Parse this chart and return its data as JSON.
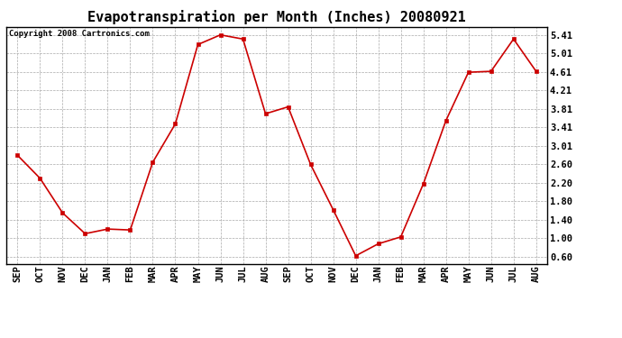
{
  "title": "Evapotranspiration per Month (Inches) 20080921",
  "copyright": "Copyright 2008 Cartronics.com",
  "months": [
    "SEP",
    "OCT",
    "NOV",
    "DEC",
    "JAN",
    "FEB",
    "MAR",
    "APR",
    "MAY",
    "JUN",
    "JUL",
    "AUG",
    "SEP",
    "OCT",
    "NOV",
    "DEC",
    "JAN",
    "FEB",
    "MAR",
    "APR",
    "MAY",
    "JUN",
    "JUL",
    "AUG"
  ],
  "values": [
    2.8,
    2.3,
    1.55,
    1.1,
    1.2,
    1.18,
    2.65,
    3.48,
    5.2,
    5.41,
    5.32,
    3.7,
    3.85,
    2.6,
    1.62,
    0.62,
    0.88,
    1.03,
    2.18,
    3.55,
    4.6,
    4.62,
    5.32,
    4.62
  ],
  "line_color": "#cc0000",
  "marker": "s",
  "marker_size": 2.5,
  "background_color": "#ffffff",
  "grid_color": "#aaaaaa",
  "yticks": [
    0.6,
    1.0,
    1.4,
    1.8,
    2.2,
    2.6,
    3.01,
    3.41,
    3.81,
    4.21,
    4.61,
    5.01,
    5.41
  ],
  "ylim": [
    0.45,
    5.58
  ],
  "title_fontsize": 11,
  "copyright_fontsize": 6.5,
  "tick_fontsize": 7.5,
  "linewidth": 1.2
}
